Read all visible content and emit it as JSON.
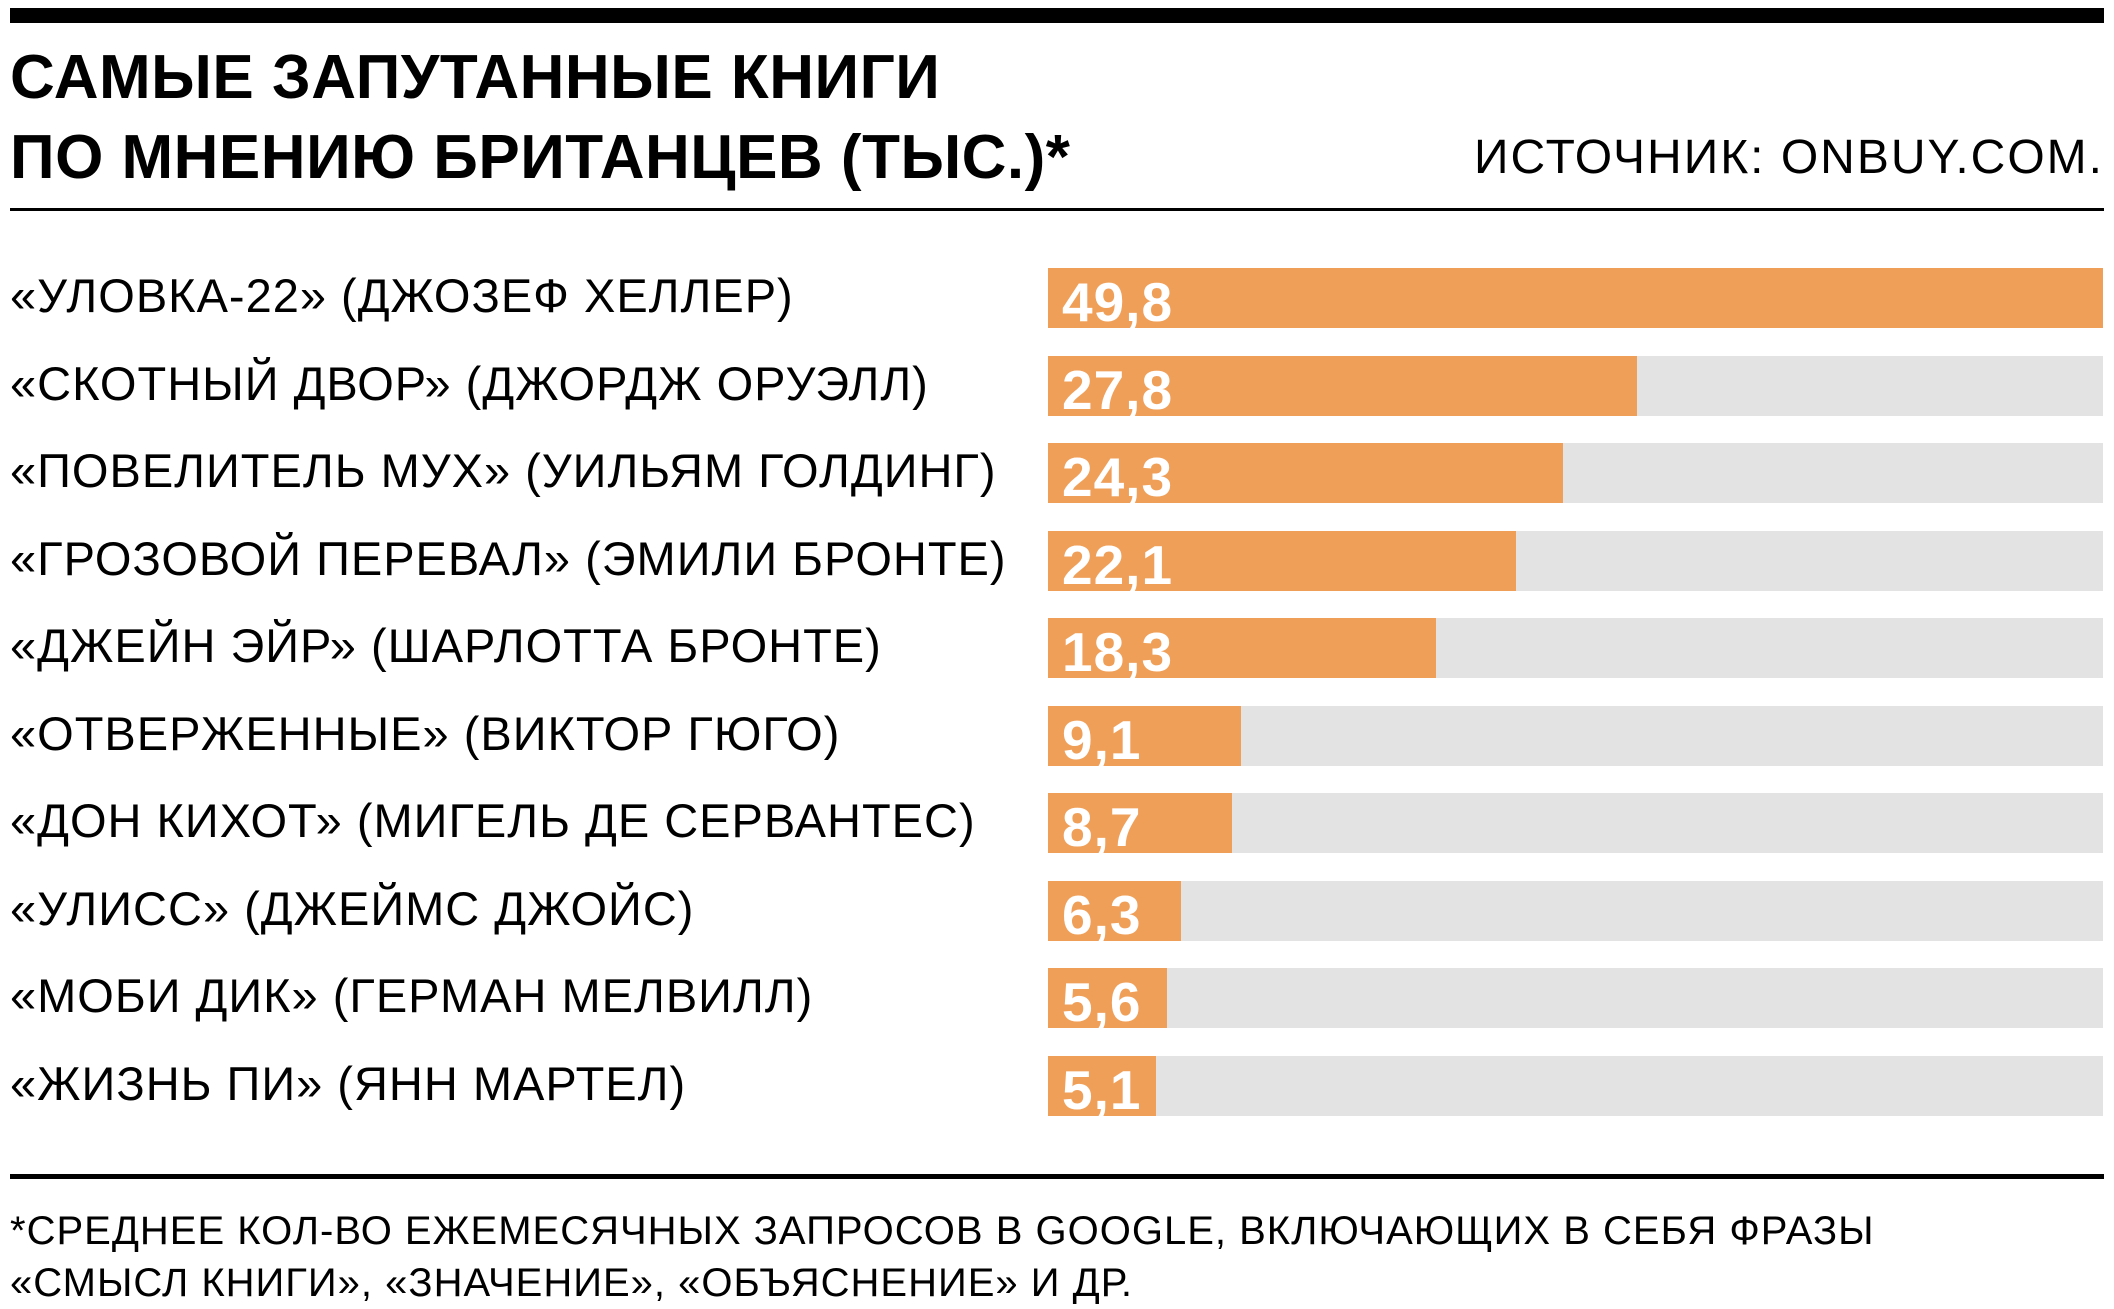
{
  "title_lines": [
    "САМЫЕ ЗАПУТАННЫЕ КНИГИ",
    "ПО МНЕНИЮ БРИТАНЦЕВ (ТЫС.)*"
  ],
  "source": "ИСТОЧНИК: ONBUY.COM.",
  "footnote_lines": [
    "*СРЕДНЕЕ КОЛ-ВО ЕЖЕМЕСЯЧНЫХ ЗАПРОСОВ В GOOGLE, ВКЛЮЧАЮЩИХ В СЕБЯ ФРАЗЫ",
    "«СМЫСЛ КНИГИ», «ЗНАЧЕНИЕ», «ОБЪЯСНЕНИЕ» И ДР."
  ],
  "colors": {
    "bar": "#f09f58",
    "track": "#e3e3e3",
    "value_text": "#ffffff",
    "rule": "#000000"
  },
  "chart_data": {
    "type": "bar",
    "orientation": "horizontal",
    "title": "САМЫЕ ЗАПУТАННЫЕ КНИГИ ПО МНЕНИЮ БРИТАНЦЕВ (ТЫС.)*",
    "categories": [
      "«УЛОВКА-22» (ДЖОЗЕФ ХЕЛЛЕР)",
      "«СКОТНЫЙ ДВОР» (ДЖОРДЖ ОРУЭЛЛ)",
      "«ПОВЕЛИТЕЛЬ МУХ» (УИЛЬЯМ ГОЛДИНГ)",
      "«ГРОЗОВОЙ ПЕРЕВАЛ» (ЭМИЛИ БРОНТЕ)",
      "«ДЖЕЙН ЭЙР» (ШАРЛОТТА БРОНТЕ)",
      "«ОТВЕРЖЕННЫЕ» (ВИКТОР ГЮГО)",
      "«ДОН КИХОТ» (МИГЕЛЬ ДЕ СЕРВАНТЕС)",
      "«УЛИСС» (ДЖЕЙМС ДЖОЙС)",
      "«МОБИ ДИК» (ГЕРМАН МЕЛВИЛЛ)",
      "«ЖИЗНЬ ПИ» (ЯНН МАРТЕЛ)"
    ],
    "values": [
      49.8,
      27.8,
      24.3,
      22.1,
      18.3,
      9.1,
      8.7,
      6.3,
      5.6,
      5.1
    ],
    "value_labels": [
      "49,8",
      "27,8",
      "24,3",
      "22,1",
      "18,3",
      "9,1",
      "8,7",
      "6,3",
      "5,6",
      "5,1"
    ],
    "xlim": [
      0,
      49.8
    ],
    "grid": false
  }
}
